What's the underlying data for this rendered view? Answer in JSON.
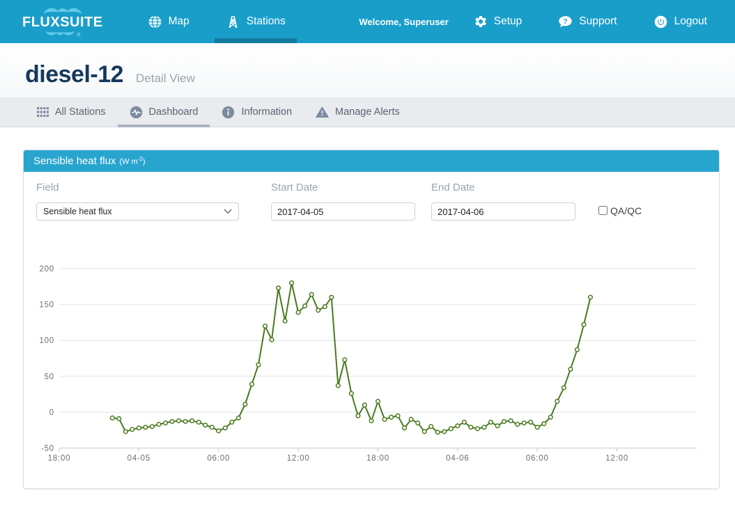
{
  "navbar": {
    "brand": {
      "text": "FLUXSUITE",
      "registered": "®"
    },
    "items": [
      {
        "label": "Map",
        "icon": "globe-icon",
        "active": false
      },
      {
        "label": "Stations",
        "icon": "tower-icon",
        "active": true
      }
    ],
    "welcome": "Welcome, Superuser",
    "utility_items": [
      {
        "label": "Setup",
        "icon": "gear-icon"
      },
      {
        "label": "Support",
        "icon": "help-bubble-icon"
      },
      {
        "label": "Logout",
        "icon": "power-icon"
      }
    ]
  },
  "header": {
    "title": "diesel-12",
    "subtitle": "Detail View"
  },
  "tabs": [
    {
      "label": "All Stations",
      "icon": "grid-icon",
      "active": false
    },
    {
      "label": "Dashboard",
      "icon": "waveform-icon",
      "active": true
    },
    {
      "label": "Information",
      "icon": "info-icon",
      "active": false
    },
    {
      "label": "Manage Alerts",
      "icon": "alert-triangle-icon",
      "active": false
    }
  ],
  "panel": {
    "title": "Sensible heat flux",
    "units_open": "(W m",
    "units_sup": "-2",
    "units_close": ")"
  },
  "filters": {
    "field": {
      "label": "Field",
      "value": "Sensible heat flux"
    },
    "start_date": {
      "label": "Start Date",
      "value": "2017-04-05"
    },
    "end_date": {
      "label": "End Date",
      "value": "2017-04-06"
    },
    "qaqc": {
      "label": "QA/QC",
      "checked": false
    }
  },
  "colors": {
    "navbar_bg": "#199ECA",
    "nav_active_underline": "#117A9E",
    "panel_header_bg": "#28A5CF",
    "line_green": "#49791E",
    "gridline": "#E4E4E4",
    "axis_line": "#C9C9C9",
    "tick_text": "#6E6E6E"
  },
  "chart_data": {
    "type": "line",
    "title": "Sensible heat flux (W m-2)",
    "xlabel": "",
    "ylabel": "",
    "grid": true,
    "legend": false,
    "ylim": [
      -50,
      200
    ],
    "yticks": [
      200,
      150,
      100,
      50,
      0,
      -50
    ],
    "xlim_hours": [
      0,
      48
    ],
    "x_axis_note": "hours after 2017-04-04 18:00, samples every 30 min",
    "xticks": [
      {
        "h": 0,
        "label": "18:00"
      },
      {
        "h": 6,
        "label": "04-05"
      },
      {
        "h": 12,
        "label": "06:00"
      },
      {
        "h": 18,
        "label": "12:00"
      },
      {
        "h": 24,
        "label": "18:00"
      },
      {
        "h": 30,
        "label": "04-06"
      },
      {
        "h": 36,
        "label": "06:00"
      },
      {
        "h": 42,
        "label": "12:00"
      }
    ],
    "series": [
      {
        "name": "Sensible heat flux",
        "color": "#49791E",
        "marker": "hollow-circle",
        "points": [
          [
            4,
            -8
          ],
          [
            4.5,
            -9
          ],
          [
            5,
            -27
          ],
          [
            5.5,
            -24
          ],
          [
            6,
            -22
          ],
          [
            6.5,
            -21
          ],
          [
            7,
            -20
          ],
          [
            7.5,
            -17
          ],
          [
            8,
            -15
          ],
          [
            8.5,
            -13
          ],
          [
            9,
            -12
          ],
          [
            9.5,
            -13
          ],
          [
            10,
            -12
          ],
          [
            10.5,
            -14
          ],
          [
            11,
            -18
          ],
          [
            11.5,
            -21
          ],
          [
            12,
            -26
          ],
          [
            12.5,
            -22
          ],
          [
            13,
            -14
          ],
          [
            13.5,
            -8
          ],
          [
            14,
            11
          ],
          [
            14.5,
            39
          ],
          [
            15,
            66
          ],
          [
            15.5,
            120
          ],
          [
            16,
            101
          ],
          [
            16.5,
            173
          ],
          [
            17,
            127
          ],
          [
            17.5,
            180
          ],
          [
            18,
            139
          ],
          [
            18.5,
            148
          ],
          [
            19,
            164
          ],
          [
            19.5,
            142
          ],
          [
            20,
            147
          ],
          [
            20.5,
            160
          ],
          [
            21,
            37
          ],
          [
            21.5,
            73
          ],
          [
            22,
            26
          ],
          [
            22.5,
            -5
          ],
          [
            23,
            10
          ],
          [
            23.5,
            -12
          ],
          [
            24,
            15
          ],
          [
            24.5,
            -10
          ],
          [
            25,
            -7
          ],
          [
            25.5,
            -5
          ],
          [
            26,
            -22
          ],
          [
            26.5,
            -10
          ],
          [
            27,
            -15
          ],
          [
            27.5,
            -27
          ],
          [
            28,
            -20
          ],
          [
            28.5,
            -28
          ],
          [
            29,
            -27
          ],
          [
            29.5,
            -23
          ],
          [
            30,
            -19
          ],
          [
            30.5,
            -14
          ],
          [
            31,
            -21
          ],
          [
            31.5,
            -23
          ],
          [
            32,
            -21
          ],
          [
            32.5,
            -14
          ],
          [
            33,
            -19
          ],
          [
            33.5,
            -13
          ],
          [
            34,
            -12
          ],
          [
            34.5,
            -17
          ],
          [
            35,
            -15
          ],
          [
            35.5,
            -14
          ],
          [
            36,
            -21
          ],
          [
            36.5,
            -16
          ],
          [
            37,
            -7
          ],
          [
            37.5,
            15
          ],
          [
            38,
            34
          ],
          [
            38.5,
            60
          ],
          [
            39,
            87
          ],
          [
            39.5,
            122
          ],
          [
            40,
            160
          ]
        ]
      }
    ]
  }
}
